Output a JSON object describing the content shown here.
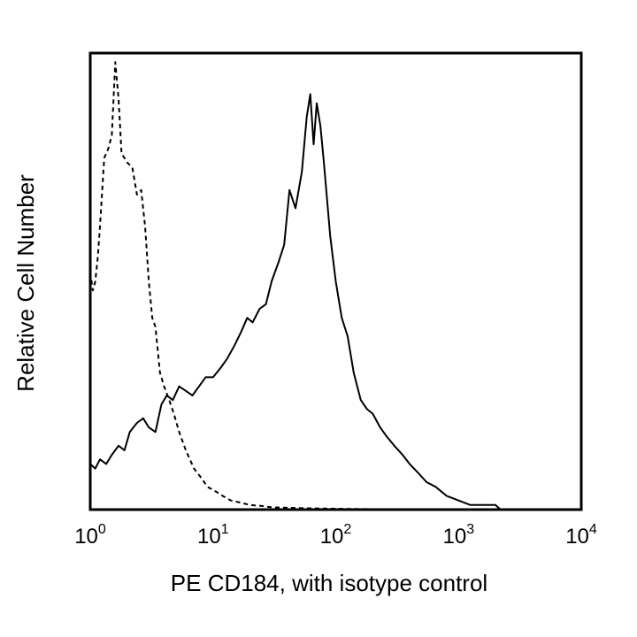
{
  "chart_data": {
    "type": "line",
    "title": "",
    "xlabel": "PE CD184, with isotype control",
    "ylabel": "Relative Cell Number",
    "x_scale": "log10",
    "xlim": [
      1,
      10000
    ],
    "ylim": [
      0,
      100
    ],
    "grid": false,
    "legend": "none",
    "x_ticks": [
      {
        "base": "10",
        "exp": "0"
      },
      {
        "base": "10",
        "exp": "1"
      },
      {
        "base": "10",
        "exp": "2"
      },
      {
        "base": "10",
        "exp": "3"
      },
      {
        "base": "10",
        "exp": "4"
      }
    ],
    "series": [
      {
        "style": "solid",
        "color": "#000000",
        "x": [
          1.0,
          1.1,
          1.2,
          1.35,
          1.5,
          1.7,
          1.9,
          2.1,
          2.4,
          2.7,
          3.0,
          3.4,
          3.8,
          4.2,
          4.7,
          5.3,
          6.0,
          6.8,
          7.7,
          8.7,
          10,
          11.5,
          13,
          15,
          17,
          19,
          21,
          24,
          27,
          30,
          34,
          38,
          42,
          47,
          53,
          58,
          62,
          66,
          70,
          75,
          80,
          90,
          100,
          112,
          125,
          140,
          160,
          180,
          200,
          230,
          260,
          300,
          350,
          400,
          470,
          550,
          650,
          800,
          1000,
          1250,
          1600,
          2000,
          2200
        ],
        "values": [
          10,
          9,
          11,
          10,
          12,
          14,
          13,
          17,
          19,
          20,
          18,
          17,
          23,
          25,
          24,
          27,
          26,
          25,
          27,
          29,
          29,
          31,
          33,
          36,
          39,
          42,
          41,
          44,
          45,
          50,
          54,
          58,
          70,
          66,
          74,
          86,
          91,
          80,
          89,
          84,
          76,
          60,
          50,
          42,
          38,
          30,
          24,
          22,
          21,
          18,
          16,
          14,
          12,
          10,
          8,
          6,
          5,
          3,
          2,
          1,
          1,
          1,
          0
        ]
      },
      {
        "style": "dashed",
        "color": "#000000",
        "x": [
          1.0,
          1.05,
          1.1,
          1.15,
          1.2,
          1.3,
          1.4,
          1.5,
          1.6,
          1.7,
          1.8,
          1.9,
          2.0,
          2.2,
          2.4,
          2.6,
          2.8,
          3.0,
          3.2,
          3.4,
          3.7,
          4.0,
          4.4,
          4.8,
          5.3,
          6.0,
          7.0,
          8.0,
          9.0,
          10.5,
          12,
          14,
          17,
          20,
          25,
          30,
          40,
          60,
          100,
          200,
          500,
          1000
        ],
        "values": [
          52,
          48,
          50,
          55,
          62,
          77,
          79,
          82,
          98,
          90,
          78,
          77,
          76,
          75,
          69,
          70,
          62,
          50,
          42,
          40,
          30,
          27,
          24,
          21,
          17,
          13,
          9,
          7,
          5,
          4,
          3,
          2,
          1.5,
          1,
          0.8,
          0.5,
          0.4,
          0.3,
          0.2,
          0.1,
          0.05,
          0
        ]
      }
    ]
  }
}
